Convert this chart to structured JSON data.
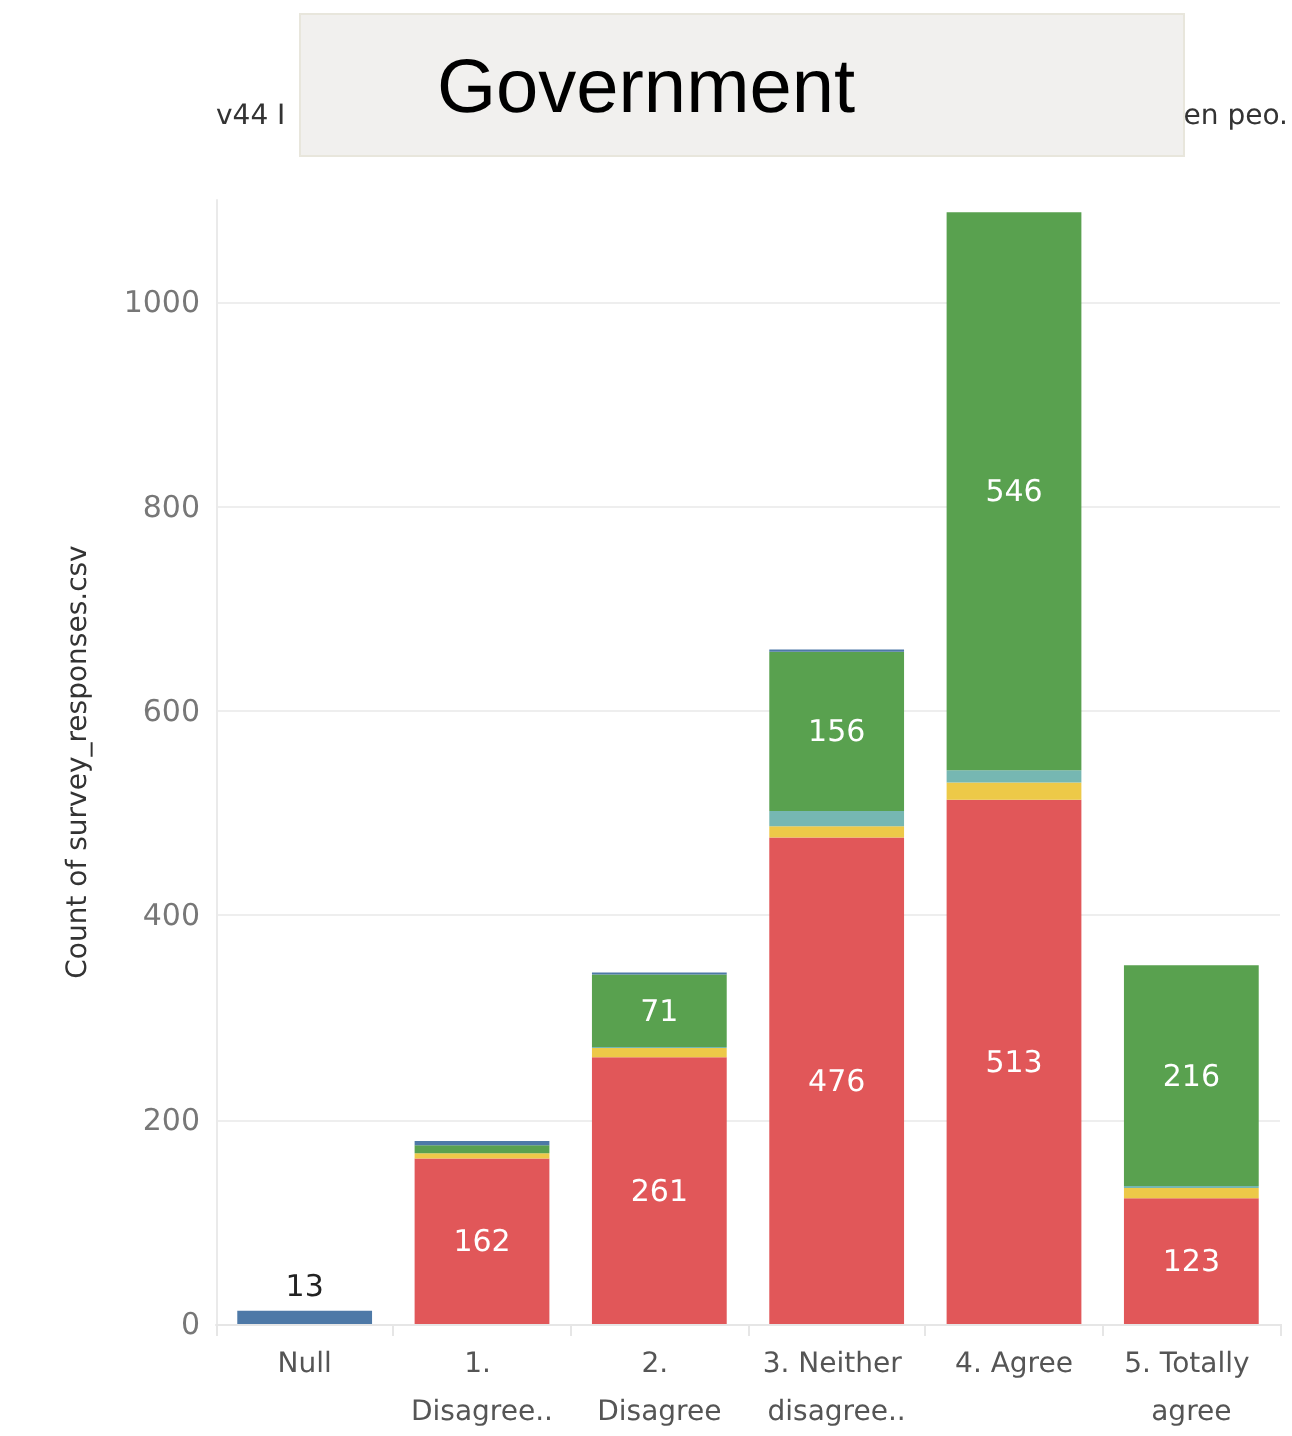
{
  "chart_data": {
    "type": "bar",
    "title": "Government",
    "annotations": [
      "v44 I",
      "en peo."
    ],
    "ylabel": "Count of survey_responses.csv",
    "stacked": true,
    "categories": [
      "Null",
      "1. Disagree..",
      "2. Disagree",
      "3. Neither disagree..",
      "4. Agree",
      "5. Totally agree"
    ],
    "series": [
      {
        "color": "#e15759",
        "values": [
          null,
          162,
          261,
          476,
          513,
          123
        ],
        "value_labels": [
          null,
          "162",
          "261",
          "476",
          "513",
          "123"
        ]
      },
      {
        "color": "#edc948",
        "values": [
          null,
          5,
          9,
          11,
          17,
          10
        ]
      },
      {
        "color": "#76b7b2",
        "values": [
          null,
          null,
          1,
          15,
          12,
          2
        ]
      },
      {
        "color": "#59a14f",
        "values": [
          null,
          8,
          71,
          156,
          546,
          216
        ],
        "value_labels": [
          null,
          null,
          "71",
          "156",
          "546",
          "216"
        ]
      },
      {
        "color": "#4e79a7",
        "values": [
          13,
          4,
          2,
          2,
          null,
          null
        ],
        "value_labels": [
          "13",
          null,
          null,
          null,
          null,
          null
        ]
      }
    ],
    "ylim": [
      0,
      1100
    ],
    "yticks": [
      0,
      200,
      400,
      600,
      800,
      1000
    ],
    "grid": "y"
  }
}
